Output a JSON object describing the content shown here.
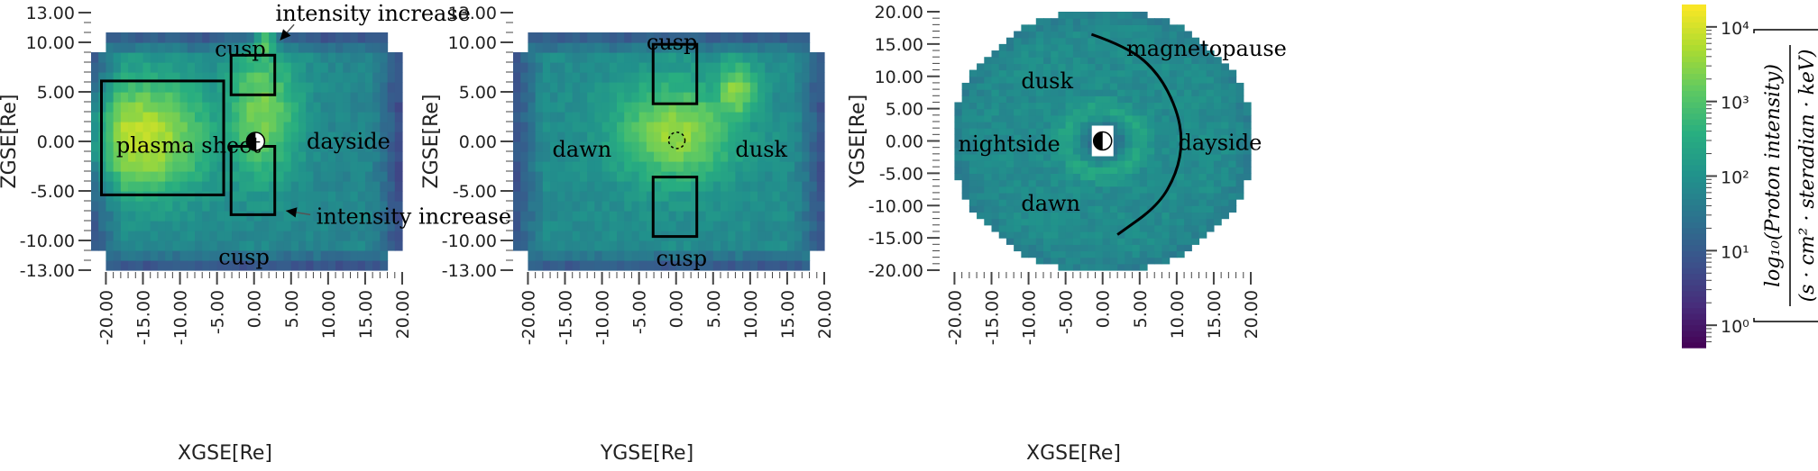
{
  "colors": {
    "colormap": [
      "#440154",
      "#472d7b",
      "#3b528b",
      "#2c728e",
      "#21918c",
      "#28ae80",
      "#5ec962",
      "#addc30",
      "#fde725"
    ],
    "box": "#000000",
    "background": "#ffffff"
  },
  "chart_data": [
    {
      "type": "heatmap",
      "xlabel": "XGSE[Re]",
      "ylabel": "ZGSE[Re]",
      "xlim": [
        -22,
        20
      ],
      "ylim": [
        -13,
        13
      ],
      "xticks": [
        -20,
        -15,
        -10,
        -5,
        0,
        5,
        10,
        15,
        20
      ],
      "xtick_labels": [
        "-20.00",
        "-15.00",
        "-10.00",
        "-5.00",
        "0.00",
        "5.00",
        "10.00",
        "15.00",
        "20.00"
      ],
      "yticks": [
        13,
        10,
        5,
        0,
        -5,
        -10,
        -13
      ],
      "ytick_labels": [
        "13.00",
        "10.00",
        "5.00",
        "0.00",
        "-5.00",
        "-10.00",
        "-13.00"
      ],
      "extent": {
        "x": [
          -22,
          20
        ],
        "y": [
          -13,
          11
        ]
      },
      "hotspots": [
        {
          "x": -15,
          "y": 0.5,
          "level": 3.9,
          "sx": 9,
          "sy": 6
        },
        {
          "x": 1,
          "y": 3,
          "level": 3.4,
          "sx": 5,
          "sy": 7
        },
        {
          "x": 1.5,
          "y": 10,
          "level": 4.0,
          "sx": 1.5,
          "sy": 1.2
        }
      ],
      "base_level": 1.8,
      "edge_level": 0.7,
      "shape": "rect",
      "annotations": [
        {
          "text": "plasma sheet",
          "x": -18.6,
          "y": -0.4
        },
        {
          "text": "cusp",
          "x": -5.3,
          "y": 9.3
        },
        {
          "text": "cusp",
          "x": -4.8,
          "y": -11.7
        },
        {
          "text": "dayside",
          "x": 7.1,
          "y": 0
        },
        {
          "text": "intensity increase",
          "x": 2.9,
          "y": 12.9
        },
        {
          "text": "intensity increase",
          "x": 8.4,
          "y": -7.6
        }
      ],
      "boxes": [
        {
          "x0": -20.6,
          "x1": -4.1,
          "y0": -5.4,
          "y1": 6.1
        },
        {
          "x0": -3.1,
          "x1": 2.8,
          "y0": 4.7,
          "y1": 8.7
        },
        {
          "x0": -3.1,
          "x1": 2.8,
          "y0": -7.4,
          "y1": -0.5
        }
      ],
      "arrows": [
        {
          "x0": 5.4,
          "y0": 11.8,
          "x1": 3.5,
          "y1": 10.2
        },
        {
          "x0": 7.6,
          "y0": -7.4,
          "x1": 4.3,
          "y1": -7.0
        }
      ],
      "earth": {
        "x": 0.2,
        "y": 0.0
      }
    },
    {
      "type": "heatmap",
      "xlabel": "YGSE[Re]",
      "ylabel": "ZGSE[Re]",
      "xlim": [
        -22,
        20
      ],
      "ylim": [
        -13,
        13
      ],
      "xticks": [
        -20,
        -15,
        -10,
        -5,
        0,
        5,
        10,
        15,
        20
      ],
      "xtick_labels": [
        "-20.00",
        "-15.00",
        "-10.00",
        "-5.00",
        "0.00",
        "5.00",
        "10.00",
        "15.00",
        "20.00"
      ],
      "yticks": [
        13,
        10,
        5,
        0,
        -5,
        -10,
        -13
      ],
      "ytick_labels": [
        "13.00",
        "10.00",
        "5.00",
        "0.00",
        "-5.00",
        "-10.00",
        "-13.00"
      ],
      "extent": {
        "x": [
          -22,
          20
        ],
        "y": [
          -13,
          11
        ]
      },
      "hotspots": [
        {
          "x": 0,
          "y": 1,
          "level": 3.6,
          "sx": 8,
          "sy": 5
        },
        {
          "x": 8,
          "y": 5,
          "level": 3.5,
          "sx": 3,
          "sy": 3
        }
      ],
      "base_level": 1.9,
      "edge_level": 0.8,
      "shape": "rect",
      "annotations": [
        {
          "text": "dawn",
          "x": -16.7,
          "y": -0.8
        },
        {
          "text": "dusk",
          "x": 8.0,
          "y": -0.8
        },
        {
          "text": "cusp",
          "x": -4.0,
          "y": 10.0
        },
        {
          "text": "cusp",
          "x": -2.7,
          "y": -11.8
        }
      ],
      "boxes": [
        {
          "x0": -3.1,
          "x1": 2.8,
          "y0": 3.8,
          "y1": 9.8
        },
        {
          "x0": -3.1,
          "x1": 2.8,
          "y0": -9.6,
          "y1": -3.6
        }
      ],
      "arrows": [],
      "dashed_circle": {
        "x": 0.1,
        "y": 0.1,
        "r": 1.1
      }
    },
    {
      "type": "heatmap",
      "xlabel": "XGSE[Re]",
      "ylabel": "YGSE[Re]",
      "xlim": [
        -22,
        20
      ],
      "ylim": [
        -20,
        20
      ],
      "xticks": [
        -20,
        -15,
        -10,
        -5,
        0,
        5,
        10,
        15,
        20
      ],
      "xtick_labels": [
        "-20.00",
        "-15.00",
        "-10.00",
        "-5.00",
        "0.00",
        "5.00",
        "10.00",
        "15.00",
        "20.00"
      ],
      "yticks": [
        20,
        15,
        10,
        5,
        0,
        -5,
        -10,
        -15,
        -20
      ],
      "ytick_labels": [
        "20.00",
        "15.00",
        "10.00",
        "5.00",
        "0.00",
        "-5.00",
        "-10.00",
        "-15.00",
        "-20.00"
      ],
      "shape": "disk",
      "disk_radius": 20.5,
      "ring_radius": 5,
      "base_level": 1.9,
      "annotations": [
        {
          "text": "dusk",
          "x": -11.0,
          "y": 9.3
        },
        {
          "text": "nightside",
          "x": -19.5,
          "y": -0.5
        },
        {
          "text": "dawn",
          "x": -11.0,
          "y": -9.7
        },
        {
          "text": "dayside",
          "x": 10.2,
          "y": -0.3
        },
        {
          "text": "magnetopause",
          "x": 3.2,
          "y": 14.3
        }
      ],
      "magnetopause": [
        [
          -1.5,
          16.5
        ],
        [
          3.5,
          14.5
        ],
        [
          7.5,
          10.5
        ],
        [
          10.0,
          5.0
        ],
        [
          10.8,
          0.0
        ],
        [
          10.0,
          -5.0
        ],
        [
          7.5,
          -10.0
        ],
        [
          2.0,
          -14.5
        ]
      ],
      "earth": {
        "x": 0.0,
        "y": 0.0
      }
    }
  ],
  "colorbar": {
    "label_main": "log₁₀(Proton intensity)",
    "label_units": "(s · cm² · steradian · keV)",
    "tick_labels": [
      "10⁰",
      "10¹",
      "10²",
      "10³",
      "10⁴"
    ],
    "tick_values": [
      0,
      1,
      2,
      3,
      4
    ],
    "range": [
      -0.3,
      4.3
    ]
  }
}
